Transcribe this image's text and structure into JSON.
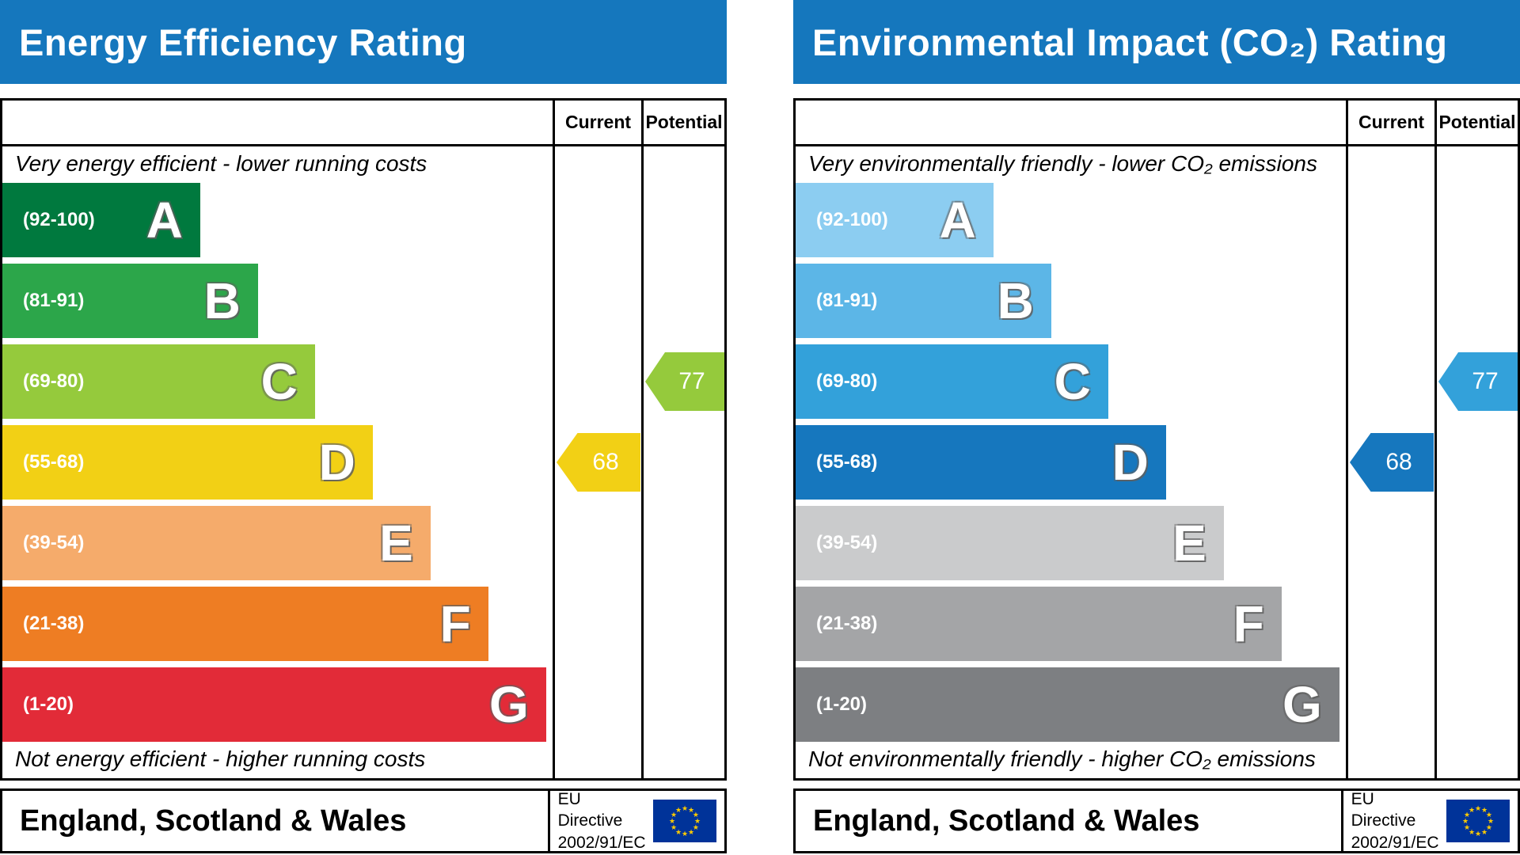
{
  "theme": {
    "header_bg": "#1577bd",
    "header_text": "#ffffff",
    "border": "#000000",
    "eu_flag_bg": "#003399",
    "eu_flag_stars": "#ffcc00"
  },
  "chart_data": [
    {
      "type": "bar",
      "id": "energy-efficiency",
      "title": "Energy Efficiency Rating",
      "columns": [
        "Current",
        "Potential"
      ],
      "top_label": "Very energy efficient - lower running costs",
      "bottom_label": "Not energy efficient - higher running costs",
      "scale": [
        1,
        100
      ],
      "bands": [
        {
          "letter": "A",
          "range_label": "(92-100)",
          "min": 92,
          "max": 100,
          "color": "#00793e",
          "width_pct": 27.4
        },
        {
          "letter": "B",
          "range_label": "(81-91)",
          "min": 81,
          "max": 91,
          "color": "#2ca64a",
          "width_pct": 35.4
        },
        {
          "letter": "C",
          "range_label": "(69-80)",
          "min": 69,
          "max": 80,
          "color": "#95ca3c",
          "width_pct": 43.3
        },
        {
          "letter": "D",
          "range_label": "(55-68)",
          "min": 55,
          "max": 68,
          "color": "#f2d015",
          "width_pct": 51.3
        },
        {
          "letter": "E",
          "range_label": "(39-54)",
          "min": 39,
          "max": 54,
          "color": "#f5ab6b",
          "width_pct": 59.3
        },
        {
          "letter": "F",
          "range_label": "(21-38)",
          "min": 21,
          "max": 38,
          "color": "#ee7d23",
          "width_pct": 67.3
        },
        {
          "letter": "G",
          "range_label": "(1-20)",
          "min": 1,
          "max": 20,
          "color": "#e22b38",
          "width_pct": 75.3
        }
      ],
      "current": {
        "label": "Current",
        "value": 68,
        "band": "D",
        "color": "#f2d015"
      },
      "potential": {
        "label": "Potential",
        "value": 77,
        "band": "C",
        "color": "#95ca3c"
      },
      "footer": {
        "region": "England, Scotland & Wales",
        "directive": [
          "EU Directive",
          "2002/91/EC"
        ],
        "flag": "eu-flag"
      }
    },
    {
      "type": "bar",
      "id": "environmental-impact-co2",
      "title": "Environmental Impact (CO₂) Rating",
      "columns": [
        "Current",
        "Potential"
      ],
      "top_label": "Very environmentally friendly - lower CO₂ emissions",
      "bottom_label": "Not environmentally friendly - higher CO₂ emissions",
      "scale": [
        1,
        100
      ],
      "bands": [
        {
          "letter": "A",
          "range_label": "(92-100)",
          "min": 92,
          "max": 100,
          "color": "#8ccdf1",
          "width_pct": 27.4
        },
        {
          "letter": "B",
          "range_label": "(81-91)",
          "min": 81,
          "max": 91,
          "color": "#5cb6e7",
          "width_pct": 35.4
        },
        {
          "letter": "C",
          "range_label": "(69-80)",
          "min": 69,
          "max": 80,
          "color": "#33a1da",
          "width_pct": 43.3
        },
        {
          "letter": "D",
          "range_label": "(55-68)",
          "min": 55,
          "max": 68,
          "color": "#1677be",
          "width_pct": 51.3
        },
        {
          "letter": "E",
          "range_label": "(39-54)",
          "min": 39,
          "max": 54,
          "color": "#cacbcc",
          "width_pct": 59.3
        },
        {
          "letter": "F",
          "range_label": "(21-38)",
          "min": 21,
          "max": 38,
          "color": "#a4a5a7",
          "width_pct": 67.3
        },
        {
          "letter": "G",
          "range_label": "(1-20)",
          "min": 1,
          "max": 20,
          "color": "#7d7f82",
          "width_pct": 75.3
        }
      ],
      "current": {
        "label": "Current",
        "value": 68,
        "band": "D",
        "color": "#1677be"
      },
      "potential": {
        "label": "Potential",
        "value": 77,
        "band": "C",
        "color": "#33a1da"
      },
      "footer": {
        "region": "England, Scotland & Wales",
        "directive": [
          "EU Directive",
          "2002/91/EC"
        ],
        "flag": "eu-flag"
      }
    }
  ]
}
